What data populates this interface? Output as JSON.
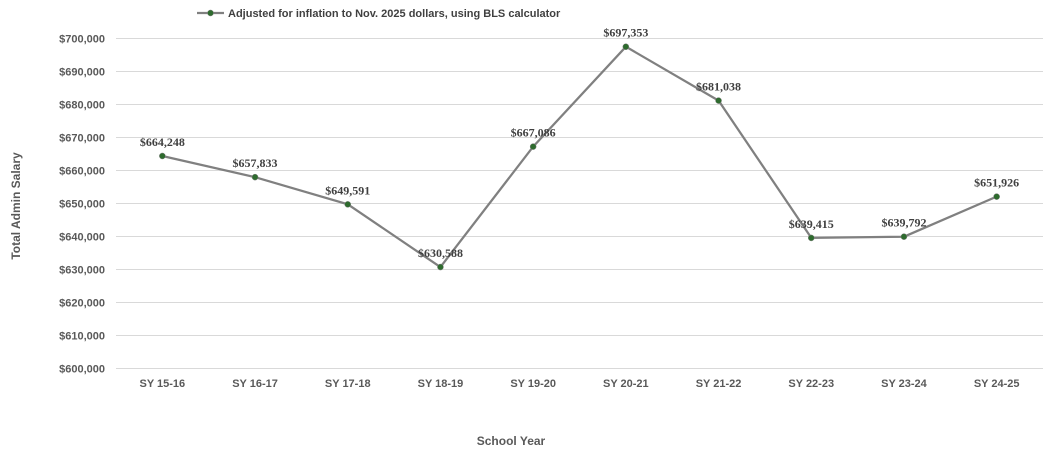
{
  "chart_data": {
    "type": "line",
    "title": "",
    "xlabel": "School Year",
    "ylabel": "Total Admin Salary",
    "categories": [
      "SY 15-16",
      "SY 16-17",
      "SY 17-18",
      "SY 18-19",
      "SY 19-20",
      "SY 20-21",
      "SY 21-22",
      "SY 22-23",
      "SY 23-24",
      "SY 24-25"
    ],
    "series": [
      {
        "name": "Adjusted for inflation to Nov. 2025 dollars, using BLS calculator",
        "values": [
          664248,
          657833,
          649591,
          630588,
          667086,
          697353,
          681038,
          639415,
          639792,
          651926
        ],
        "labels": [
          "$664,248",
          "$657,833",
          "$649,591",
          "$630,588",
          "$667,086",
          "$697,353",
          "$681,038",
          "$639,415",
          "$639,792",
          "$651,926"
        ],
        "line_color": "#808080",
        "marker_color": "#2e6b2e"
      }
    ],
    "ylim": [
      600000,
      700000
    ],
    "yticks": [
      600000,
      610000,
      620000,
      630000,
      640000,
      650000,
      660000,
      670000,
      680000,
      690000,
      700000
    ],
    "ytick_labels": [
      "$600,000",
      "$610,000",
      "$620,000",
      "$630,000",
      "$640,000",
      "$650,000",
      "$660,000",
      "$670,000",
      "$680,000",
      "$690,000",
      "$700,000"
    ],
    "grid": true,
    "legend_position": "top-left"
  }
}
